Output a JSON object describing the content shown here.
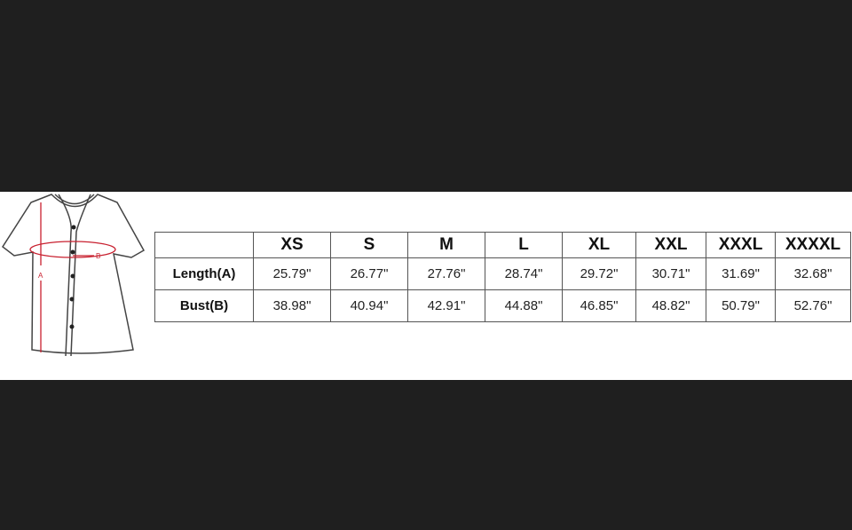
{
  "diagram": {
    "label_a": "A",
    "label_b": "B",
    "measure_color": "#c8202f"
  },
  "table": {
    "sizes": [
      "XS",
      "S",
      "M",
      "L",
      "XL",
      "XXL",
      "XXXL",
      "XXXXL"
    ],
    "rows": [
      {
        "label": "Length(A)",
        "values": [
          "25.79\"",
          "26.77\"",
          "27.76\"",
          "28.74\"",
          "29.72\"",
          "30.71\"",
          "31.69\"",
          "32.68\""
        ]
      },
      {
        "label": "Bust(B)",
        "values": [
          "38.98\"",
          "40.94\"",
          "42.91\"",
          "44.88\"",
          "46.85\"",
          "48.82\"",
          "50.79\"",
          "52.76\""
        ]
      }
    ]
  }
}
